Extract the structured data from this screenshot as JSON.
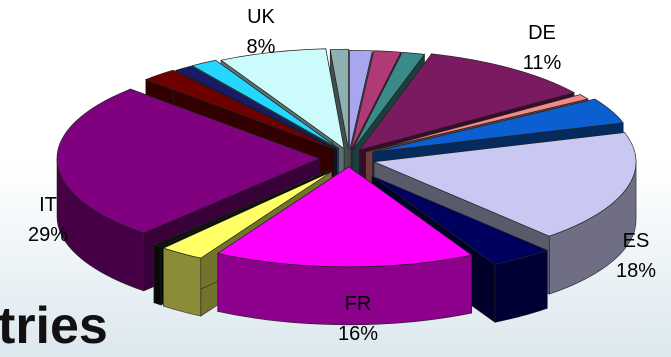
{
  "title_fragment": "tries",
  "chart_data": {
    "type": "pie",
    "style": "3d-exploded",
    "categories": [
      "DE",
      "ES",
      "FR",
      "IT",
      "UK"
    ],
    "values": [
      11,
      18,
      16,
      29,
      8
    ],
    "value_labels": [
      "11%",
      "18%",
      "16%",
      "29%",
      "8%"
    ],
    "unlabeled_slices_count": 16,
    "legend": "none",
    "colors": {
      "DE": "#7a1a60",
      "ES": "#c9c8f2",
      "FR": "#ff00ff",
      "IT": "#800080",
      "UK": "#ccfbfb",
      "blue_slice": "#0b5fd1",
      "yellow_slice": "#ffff66",
      "navy_slice": "#00005e",
      "darkred_slice": "#6e0000"
    }
  }
}
